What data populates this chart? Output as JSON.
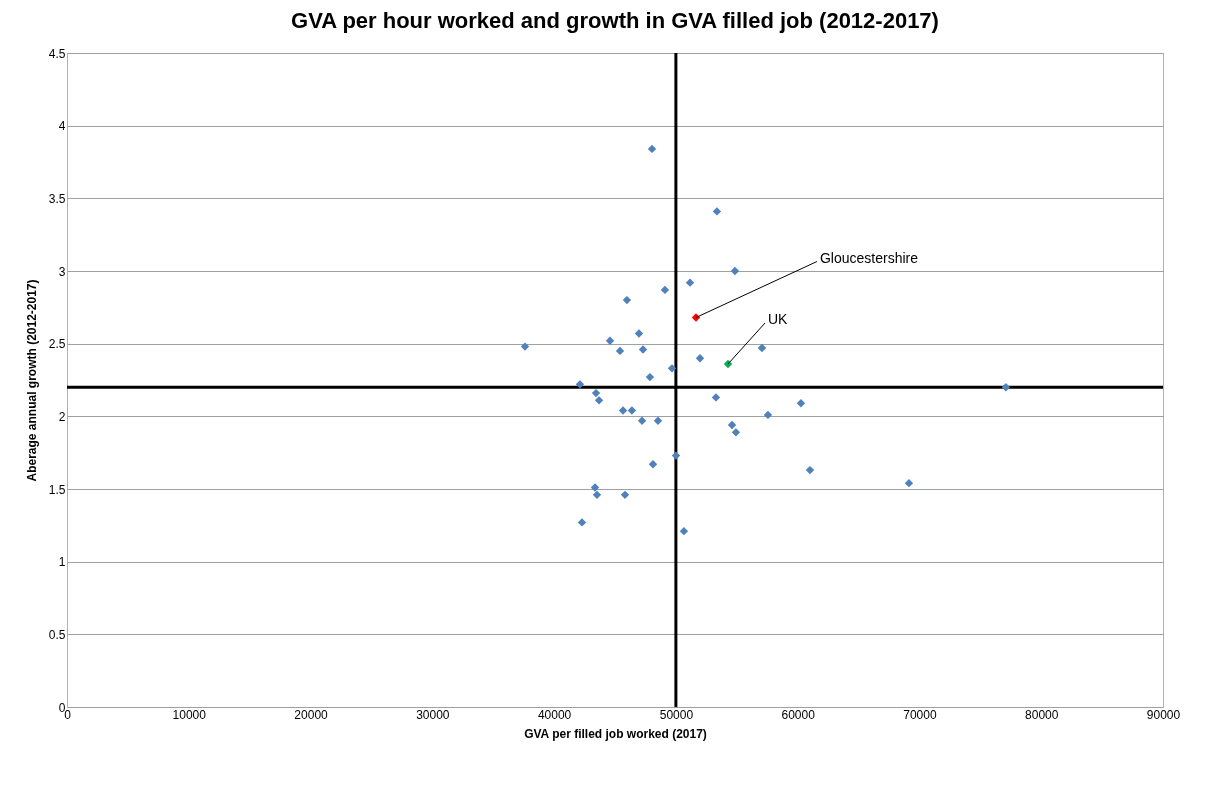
{
  "chart_data": {
    "type": "scatter",
    "title": "GVA per hour worked and growth in GVA filled job (2012-2017)",
    "xlabel": "GVA per filled job worked (2017)",
    "ylabel": "Aberage annual growth  (2012-2017)",
    "xlim": [
      0,
      90000
    ],
    "xticks": [
      0,
      10000,
      20000,
      30000,
      40000,
      50000,
      60000,
      70000,
      80000,
      90000
    ],
    "ylim": [
      0,
      4.5
    ],
    "yticks": [
      0,
      0.5,
      1,
      1.5,
      2,
      2.5,
      3,
      3.5,
      4,
      4.5
    ],
    "grid": "y",
    "marker": "diamond",
    "ref_lines": [
      {
        "axis": "x",
        "value": 50000,
        "color": "#000000"
      },
      {
        "axis": "y",
        "value": 2.2,
        "color": "#000000"
      }
    ],
    "series": [
      {
        "color": "#4f81bd",
        "x": [
          48040,
          53370,
          54850,
          51160,
          49100,
          45980,
          46970,
          44590,
          37610,
          57070,
          47300,
          45410,
          51980,
          49680,
          47870,
          42120,
          77100,
          43440,
          43690,
          53290,
          60270,
          46390,
          45660,
          57560,
          47220,
          48530,
          54610,
          54930,
          50010,
          48120,
          61010,
          69140,
          43360,
          43520,
          45820,
          42290,
          50660
        ],
        "values": [
          3.84,
          3.41,
          3.0,
          2.92,
          2.87,
          2.8,
          2.57,
          2.52,
          2.48,
          2.47,
          2.46,
          2.45,
          2.4,
          2.33,
          2.27,
          2.22,
          2.2,
          2.16,
          2.11,
          2.13,
          2.09,
          2.04,
          2.04,
          2.01,
          1.97,
          1.97,
          1.94,
          1.89,
          1.73,
          1.67,
          1.63,
          1.54,
          1.51,
          1.46,
          1.46,
          1.27,
          1.21
        ]
      },
      {
        "name": "Gloucestershire",
        "color": "#ff0000",
        "x": [
          51650
        ],
        "values": [
          2.68
        ]
      },
      {
        "name": "UK",
        "color": "#00b050",
        "x": [
          54280
        ],
        "values": [
          2.36
        ]
      }
    ]
  }
}
